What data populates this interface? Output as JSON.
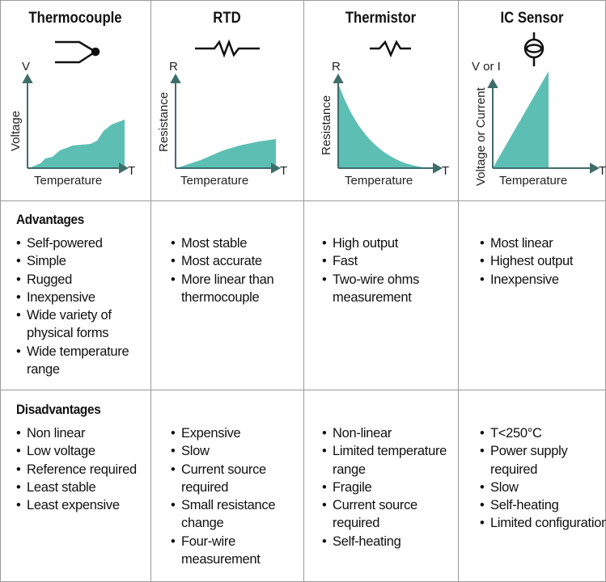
{
  "colors": {
    "fill": "#5dbfb4",
    "axis": "#3e6e6c",
    "grid": "#9a9a9a"
  },
  "row_labels": {
    "advantages": "Advantages",
    "disadvantages": "Disadvantages"
  },
  "columns": [
    {
      "name": "Thermocouple",
      "icon": "thermocouple-junction-icon",
      "chart": {
        "y_symbol": "V",
        "y_label": "Voltage",
        "x_symbol": "T",
        "x_label": "Temperature",
        "shape": "stepwise-rising"
      },
      "advantages": [
        "Self-powered",
        "Simple",
        "Rugged",
        "Inexpensive",
        "Wide variety of physical forms",
        "Wide temperature range"
      ],
      "disadvantages": [
        "Non linear",
        "Low voltage",
        "Reference required",
        "Least stable",
        "Least expensive"
      ]
    },
    {
      "name": "RTD",
      "icon": "resistor-icon",
      "chart": {
        "y_symbol": "R",
        "y_label": "Resistance",
        "x_symbol": "T",
        "x_label": "Temperature",
        "shape": "gently-rising"
      },
      "advantages": [
        "Most stable",
        "Most accurate",
        "More linear than thermocouple"
      ],
      "disadvantages": [
        "Expensive",
        "Slow",
        "Current source required",
        "Small resistance change",
        "Four-wire measurement"
      ]
    },
    {
      "name": "Thermistor",
      "icon": "thermistor-icon",
      "chart": {
        "y_symbol": "R",
        "y_label": "Resistance",
        "x_symbol": "T",
        "x_label": "Temperature",
        "shape": "exponential-decay"
      },
      "advantages": [
        "High output",
        "Fast",
        "Two-wire ohms measurement"
      ],
      "disadvantages": [
        "Non-linear",
        "Limited temperature range",
        "Fragile",
        "Current source required",
        "Self-heating"
      ]
    },
    {
      "name": "IC Sensor",
      "icon": "current-source-icon",
      "chart": {
        "y_symbol": "V or I",
        "y_label": "Voltage or Current",
        "x_symbol": "T",
        "x_label": "Temperature",
        "shape": "linear"
      },
      "advantages": [
        "Most linear",
        "Highest output",
        "Inexpensive"
      ],
      "disadvantages": [
        "T<250°C",
        "Power supply required",
        "Slow",
        "Self-heating",
        "Limited configurations"
      ]
    }
  ]
}
